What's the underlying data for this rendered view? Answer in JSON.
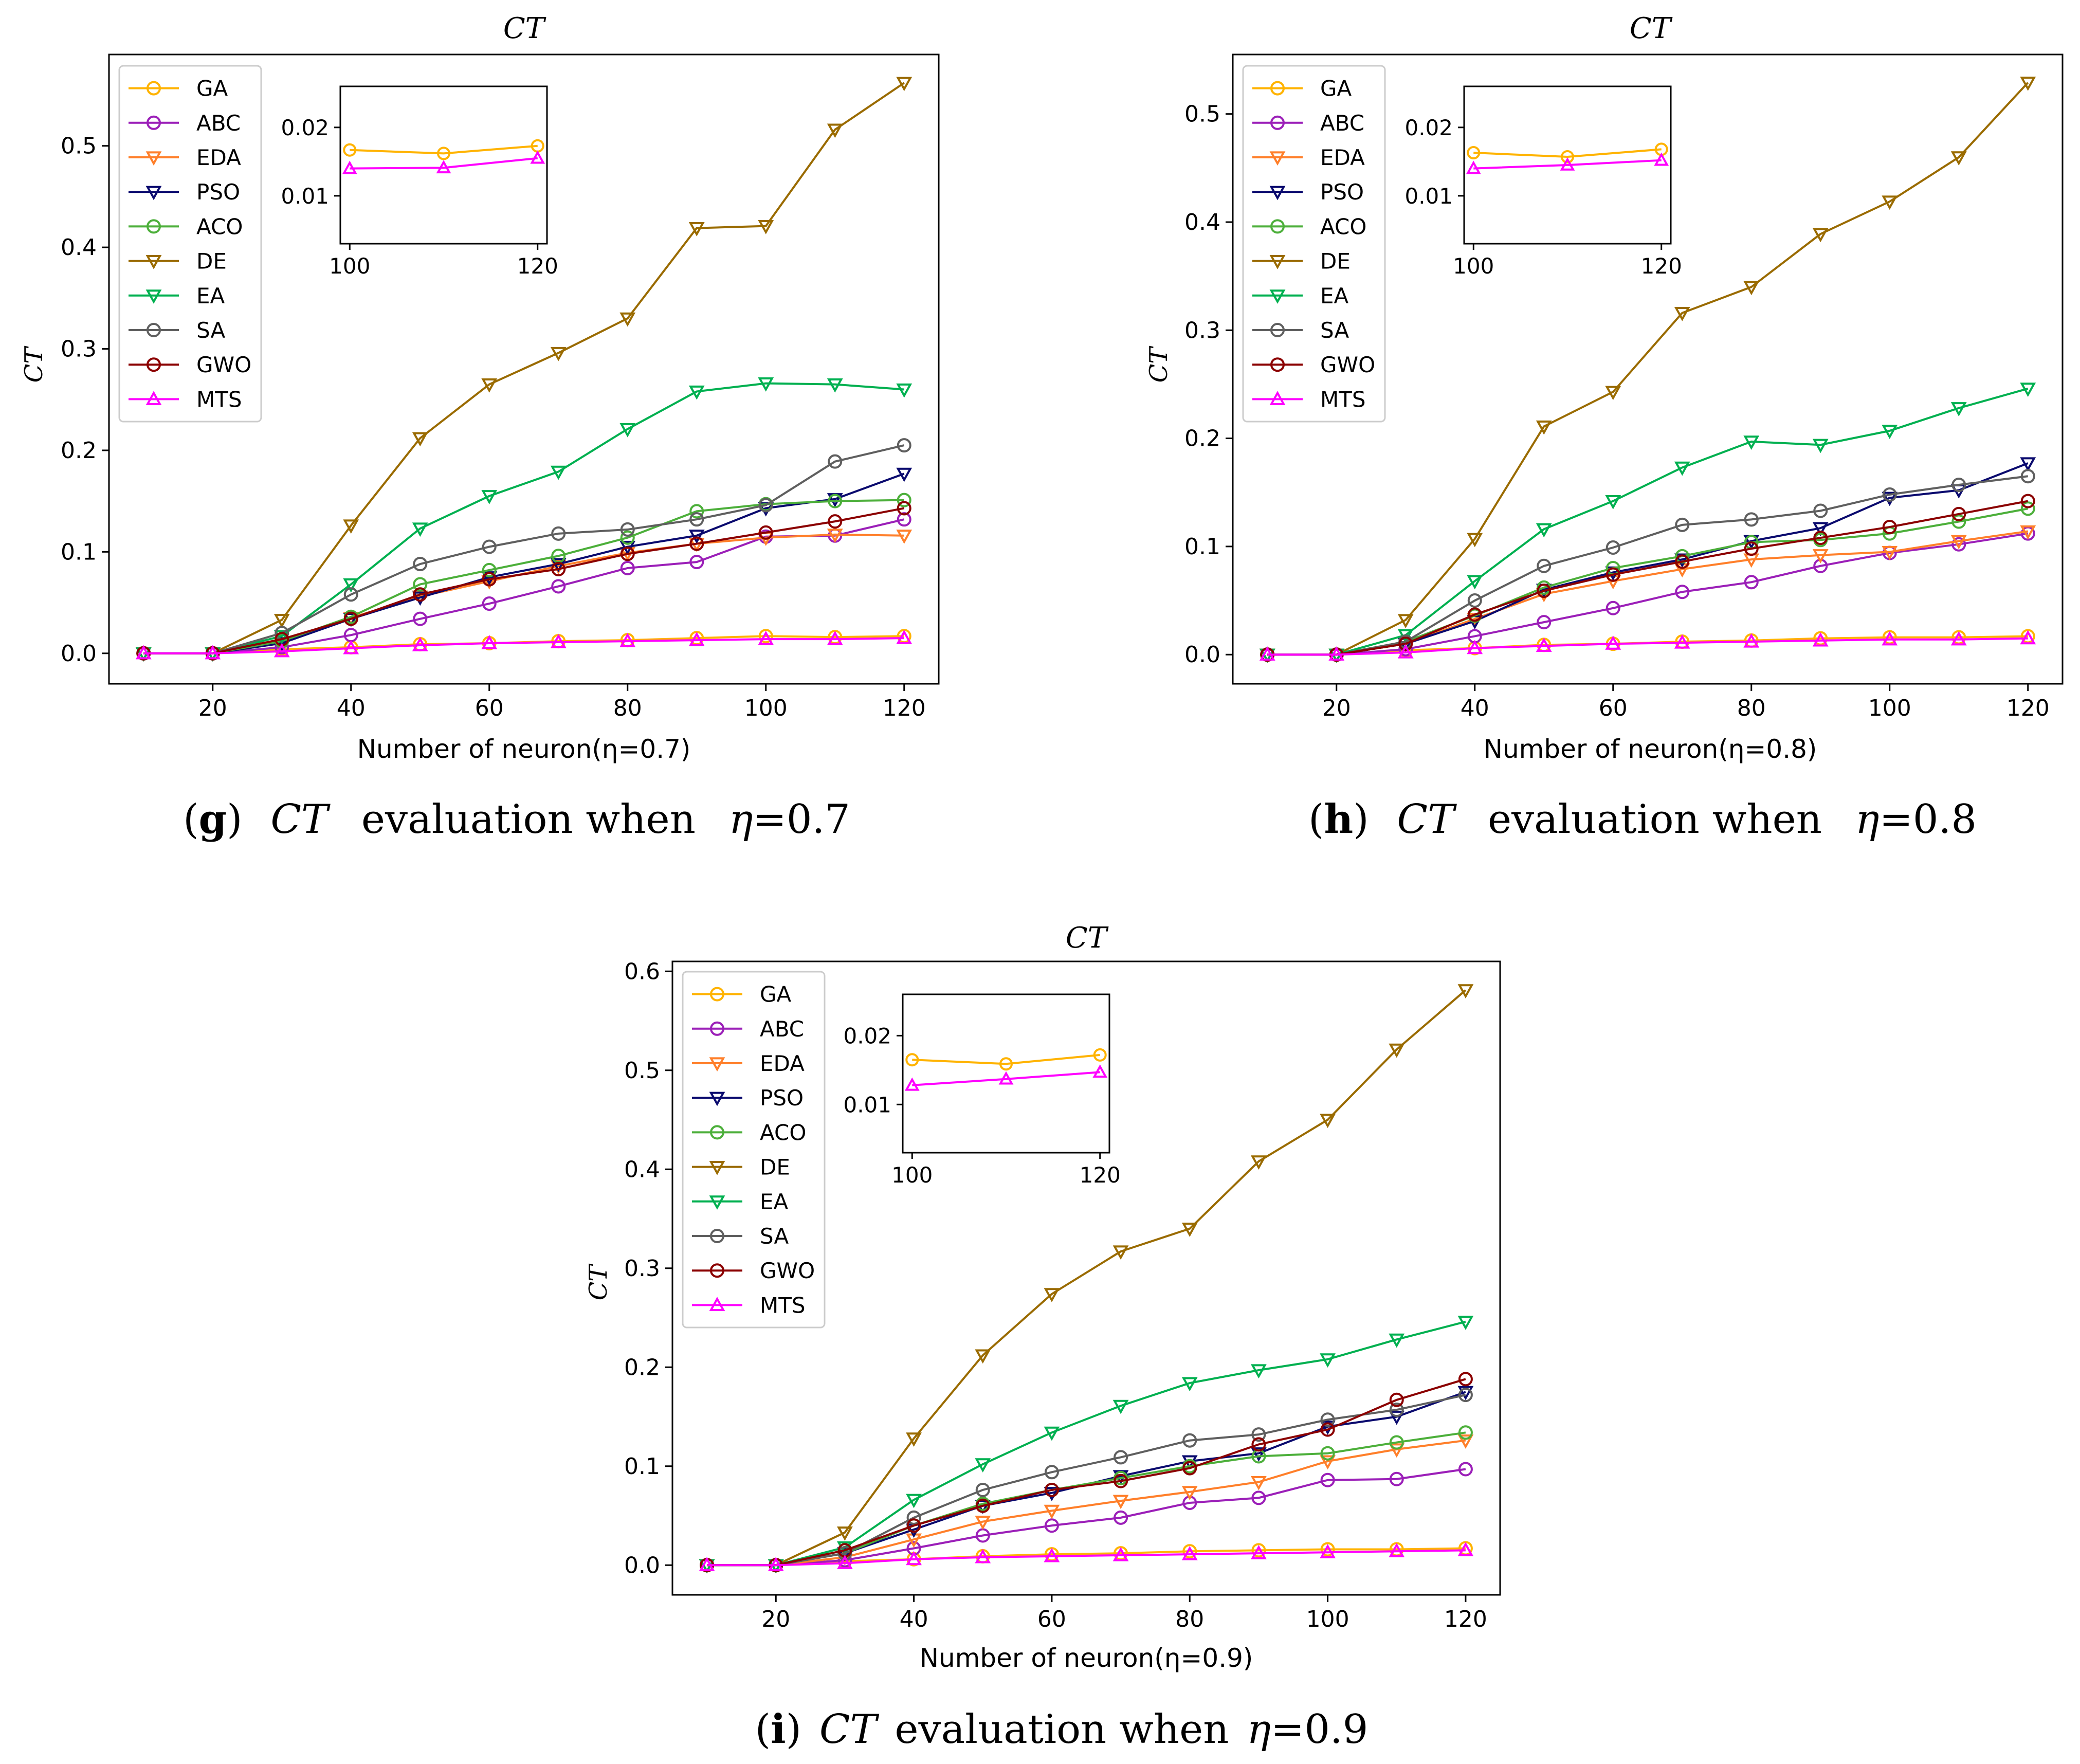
{
  "figure": {
    "captions": [
      {
        "letter": "g",
        "prefix": "(",
        "suffix": ")",
        "metric": "CT",
        "text": "evaluation when",
        "eta_symbol": "η",
        "eq": "=",
        "eta_value": "0.7"
      },
      {
        "letter": "h",
        "prefix": "(",
        "suffix": ")",
        "metric": "CT",
        "text": "evaluation when",
        "eta_symbol": "η",
        "eq": "=",
        "eta_value": "0.8"
      },
      {
        "letter": "i",
        "prefix": "(",
        "suffix": ")",
        "metric": "CT",
        "text": "evaluation when",
        "eta_symbol": "η",
        "eq": "=",
        "eta_value": "0.9"
      }
    ]
  },
  "chart_data": [
    {
      "type": "line",
      "title": "CT",
      "ylabel": "CT",
      "xlabel": "Number of neuron(η=0.7)",
      "xlim": [
        5,
        125
      ],
      "ylim": [
        -0.03,
        0.59
      ],
      "xticks": [
        20,
        40,
        60,
        80,
        100,
        120
      ],
      "xtick_labels": [
        "20",
        "40",
        "60",
        "80",
        "100",
        "120"
      ],
      "yticks": [
        0.0,
        0.1,
        0.2,
        0.3,
        0.4,
        0.5
      ],
      "ytick_labels": [
        "0.0",
        "0.1",
        "0.2",
        "0.3",
        "0.4",
        "0.5"
      ],
      "legend_position": "upper-left",
      "x": [
        10,
        20,
        30,
        40,
        50,
        60,
        70,
        80,
        90,
        100,
        110,
        120
      ],
      "series": [
        {
          "name": "GA",
          "color": "#FFB300",
          "marker": "circle",
          "values": [
            0,
            0,
            0.004,
            0.006,
            0.009,
            0.01,
            0.012,
            0.013,
            0.015,
            0.017,
            0.016,
            0.017
          ]
        },
        {
          "name": "ABC",
          "color": "#9B1FB8",
          "marker": "circle",
          "values": [
            0,
            0,
            0.006,
            0.018,
            0.034,
            0.049,
            0.066,
            0.084,
            0.09,
            0.115,
            0.116,
            0.132
          ]
        },
        {
          "name": "EDA",
          "color": "#FF7F2A",
          "marker": "triangle-down",
          "values": [
            0,
            0,
            0.01,
            0.035,
            0.056,
            0.071,
            0.086,
            0.099,
            0.108,
            0.114,
            0.117,
            0.116
          ]
        },
        {
          "name": "PSO",
          "color": "#0A0A6E",
          "marker": "triangle-down",
          "values": [
            0,
            0,
            0.01,
            0.034,
            0.055,
            0.075,
            0.088,
            0.105,
            0.116,
            0.143,
            0.152,
            0.177
          ]
        },
        {
          "name": "ACO",
          "color": "#4CAF3A",
          "marker": "circle",
          "values": [
            0,
            0,
            0.012,
            0.036,
            0.068,
            0.082,
            0.096,
            0.114,
            0.14,
            0.147,
            0.15,
            0.151
          ]
        },
        {
          "name": "DE",
          "color": "#9A6B00",
          "marker": "triangle-down",
          "values": [
            0,
            0,
            0.033,
            0.126,
            0.212,
            0.265,
            0.296,
            0.33,
            0.419,
            0.421,
            0.516,
            0.562
          ]
        },
        {
          "name": "EA",
          "color": "#00B050",
          "marker": "triangle-down",
          "values": [
            0,
            0,
            0.017,
            0.068,
            0.123,
            0.155,
            0.179,
            0.221,
            0.258,
            0.266,
            0.265,
            0.26
          ]
        },
        {
          "name": "SA",
          "color": "#5F5F5F",
          "marker": "circle",
          "values": [
            0,
            0,
            0.02,
            0.058,
            0.088,
            0.105,
            0.118,
            0.122,
            0.132,
            0.146,
            0.189,
            0.205
          ]
        },
        {
          "name": "GWO",
          "color": "#8B0000",
          "marker": "circle",
          "values": [
            0,
            0,
            0.014,
            0.034,
            0.058,
            0.073,
            0.083,
            0.098,
            0.108,
            0.119,
            0.13,
            0.143
          ]
        },
        {
          "name": "MTS",
          "color": "#FF00FF",
          "marker": "triangle-up",
          "values": [
            0,
            0,
            0.002,
            0.005,
            0.008,
            0.01,
            0.011,
            0.012,
            0.013,
            0.014,
            0.014,
            0.015
          ]
        }
      ],
      "inset": {
        "x": [
          100,
          110,
          120
        ],
        "xlim": [
          99,
          121
        ],
        "ylim": [
          0.003,
          0.026
        ],
        "xticks": [
          100,
          120
        ],
        "xtick_labels": [
          "100",
          "120"
        ],
        "yticks": [
          0.01,
          0.02
        ],
        "ytick_labels": [
          "0.01",
          "0.02"
        ],
        "series": [
          {
            "name": "GA",
            "color": "#FFB300",
            "marker": "circle",
            "values": [
              0.0167,
              0.0162,
              0.0173
            ]
          },
          {
            "name": "MTS",
            "color": "#FF00FF",
            "marker": "triangle-up",
            "values": [
              0.014,
              0.0141,
              0.0155
            ]
          }
        ]
      }
    },
    {
      "type": "line",
      "title": "CT",
      "ylabel": "CT",
      "xlabel": "Number of neuron(η=0.8)",
      "xlim": [
        5,
        125
      ],
      "ylim": [
        -0.027,
        0.555
      ],
      "xticks": [
        20,
        40,
        60,
        80,
        100,
        120
      ],
      "xtick_labels": [
        "20",
        "40",
        "60",
        "80",
        "100",
        "120"
      ],
      "yticks": [
        0.0,
        0.1,
        0.2,
        0.3,
        0.4,
        0.5
      ],
      "ytick_labels": [
        "0.0",
        "0.1",
        "0.2",
        "0.3",
        "0.4",
        "0.5"
      ],
      "legend_position": "upper-left",
      "x": [
        10,
        20,
        30,
        40,
        50,
        60,
        70,
        80,
        90,
        100,
        110,
        120
      ],
      "series": [
        {
          "name": "GA",
          "color": "#FFB300",
          "marker": "circle",
          "values": [
            0,
            0,
            0.004,
            0.006,
            0.009,
            0.01,
            0.012,
            0.013,
            0.015,
            0.016,
            0.016,
            0.017
          ]
        },
        {
          "name": "ABC",
          "color": "#9B1FB8",
          "marker": "circle",
          "values": [
            0,
            0,
            0.005,
            0.017,
            0.03,
            0.043,
            0.058,
            0.067,
            0.082,
            0.094,
            0.102,
            0.112
          ]
        },
        {
          "name": "EDA",
          "color": "#FF7F2A",
          "marker": "triangle-down",
          "values": [
            0,
            0,
            0.01,
            0.033,
            0.056,
            0.068,
            0.079,
            0.088,
            0.092,
            0.095,
            0.105,
            0.114
          ]
        },
        {
          "name": "PSO",
          "color": "#0A0A6E",
          "marker": "triangle-down",
          "values": [
            0,
            0,
            0.01,
            0.031,
            0.06,
            0.076,
            0.088,
            0.105,
            0.117,
            0.145,
            0.152,
            0.177
          ]
        },
        {
          "name": "ACO",
          "color": "#4CAF3A",
          "marker": "circle",
          "values": [
            0,
            0,
            0.012,
            0.036,
            0.062,
            0.08,
            0.091,
            0.104,
            0.106,
            0.112,
            0.123,
            0.135
          ]
        },
        {
          "name": "DE",
          "color": "#9A6B00",
          "marker": "triangle-down",
          "values": [
            0,
            0,
            0.032,
            0.107,
            0.211,
            0.243,
            0.316,
            0.34,
            0.389,
            0.419,
            0.46,
            0.529
          ]
        },
        {
          "name": "EA",
          "color": "#00B050",
          "marker": "triangle-down",
          "values": [
            0,
            0,
            0.018,
            0.068,
            0.116,
            0.142,
            0.173,
            0.197,
            0.194,
            0.207,
            0.228,
            0.246
          ]
        },
        {
          "name": "SA",
          "color": "#5F5F5F",
          "marker": "circle",
          "values": [
            0,
            0,
            0.012,
            0.05,
            0.082,
            0.099,
            0.12,
            0.125,
            0.133,
            0.148,
            0.157,
            0.165
          ]
        },
        {
          "name": "GWO",
          "color": "#8B0000",
          "marker": "circle",
          "values": [
            0,
            0,
            0.01,
            0.037,
            0.059,
            0.074,
            0.086,
            0.098,
            0.108,
            0.118,
            0.13,
            0.142
          ]
        },
        {
          "name": "MTS",
          "color": "#FF00FF",
          "marker": "triangle-up",
          "values": [
            0,
            0,
            0.002,
            0.006,
            0.008,
            0.01,
            0.011,
            0.012,
            0.013,
            0.014,
            0.014,
            0.015
          ]
        }
      ],
      "inset": {
        "x": [
          100,
          110,
          120
        ],
        "xlim": [
          99,
          121
        ],
        "ylim": [
          0.003,
          0.026
        ],
        "xticks": [
          100,
          120
        ],
        "xtick_labels": [
          "100",
          "120"
        ],
        "yticks": [
          0.01,
          0.02
        ],
        "ytick_labels": [
          "0.01",
          "0.02"
        ],
        "series": [
          {
            "name": "GA",
            "color": "#FFB300",
            "marker": "circle",
            "values": [
              0.0163,
              0.0157,
              0.0168
            ]
          },
          {
            "name": "MTS",
            "color": "#FF00FF",
            "marker": "triangle-up",
            "values": [
              0.014,
              0.0145,
              0.0152
            ]
          }
        ]
      }
    },
    {
      "type": "line",
      "title": "CT",
      "ylabel": "CT",
      "xlabel": "Number of neuron(η=0.9)",
      "xlim": [
        5,
        125
      ],
      "ylim": [
        -0.03,
        0.61
      ],
      "xticks": [
        20,
        40,
        60,
        80,
        100,
        120
      ],
      "xtick_labels": [
        "20",
        "40",
        "60",
        "80",
        "100",
        "120"
      ],
      "yticks": [
        0.0,
        0.1,
        0.2,
        0.3,
        0.4,
        0.5,
        0.6
      ],
      "ytick_labels": [
        "0.0",
        "0.1",
        "0.2",
        "0.3",
        "0.4",
        "0.5",
        "0.6"
      ],
      "legend_position": "upper-left",
      "x": [
        10,
        20,
        30,
        40,
        50,
        60,
        70,
        80,
        90,
        100,
        110,
        120
      ],
      "series": [
        {
          "name": "GA",
          "color": "#FFB300",
          "marker": "circle",
          "values": [
            0,
            0,
            0.004,
            0.006,
            0.009,
            0.011,
            0.012,
            0.014,
            0.015,
            0.016,
            0.016,
            0.017
          ]
        },
        {
          "name": "ABC",
          "color": "#9B1FB8",
          "marker": "circle",
          "values": [
            0,
            0,
            0.005,
            0.017,
            0.03,
            0.04,
            0.048,
            0.063,
            0.068,
            0.086,
            0.087,
            0.097
          ]
        },
        {
          "name": "EDA",
          "color": "#FF7F2A",
          "marker": "triangle-down",
          "values": [
            0,
            0,
            0.008,
            0.026,
            0.044,
            0.055,
            0.065,
            0.074,
            0.084,
            0.105,
            0.117,
            0.126
          ]
        },
        {
          "name": "PSO",
          "color": "#0A0A6E",
          "marker": "triangle-down",
          "values": [
            0,
            0,
            0.012,
            0.036,
            0.06,
            0.073,
            0.09,
            0.105,
            0.113,
            0.14,
            0.15,
            0.175
          ]
        },
        {
          "name": "ACO",
          "color": "#4CAF3A",
          "marker": "circle",
          "values": [
            0,
            0,
            0.012,
            0.04,
            0.062,
            0.076,
            0.088,
            0.1,
            0.11,
            0.113,
            0.124,
            0.134
          ]
        },
        {
          "name": "DE",
          "color": "#9A6B00",
          "marker": "triangle-down",
          "values": [
            0,
            0,
            0.033,
            0.128,
            0.212,
            0.274,
            0.317,
            0.34,
            0.408,
            0.45,
            0.521,
            0.581
          ]
        },
        {
          "name": "EA",
          "color": "#00B050",
          "marker": "triangle-down",
          "values": [
            0,
            0,
            0.018,
            0.066,
            0.102,
            0.134,
            0.161,
            0.184,
            0.197,
            0.208,
            0.228,
            0.246
          ]
        },
        {
          "name": "SA",
          "color": "#5F5F5F",
          "marker": "circle",
          "values": [
            0,
            0,
            0.012,
            0.048,
            0.076,
            0.094,
            0.109,
            0.126,
            0.132,
            0.147,
            0.157,
            0.172
          ]
        },
        {
          "name": "GWO",
          "color": "#8B0000",
          "marker": "circle",
          "values": [
            0,
            0,
            0.015,
            0.04,
            0.06,
            0.076,
            0.085,
            0.098,
            0.122,
            0.137,
            0.167,
            0.188
          ]
        },
        {
          "name": "MTS",
          "color": "#FF00FF",
          "marker": "triangle-up",
          "values": [
            0,
            0,
            0.002,
            0.006,
            0.008,
            0.009,
            0.01,
            0.011,
            0.012,
            0.013,
            0.014,
            0.015
          ]
        }
      ],
      "inset": {
        "x": [
          100,
          110,
          120
        ],
        "xlim": [
          99,
          121
        ],
        "ylim": [
          0.003,
          0.026
        ],
        "xticks": [
          100,
          120
        ],
        "xtick_labels": [
          "100",
          "120"
        ],
        "yticks": [
          0.01,
          0.02
        ],
        "ytick_labels": [
          "0.01",
          "0.02"
        ],
        "series": [
          {
            "name": "GA",
            "color": "#FFB300",
            "marker": "circle",
            "values": [
              0.0165,
              0.0159,
              0.0172
            ]
          },
          {
            "name": "MTS",
            "color": "#FF00FF",
            "marker": "triangle-up",
            "values": [
              0.0128,
              0.0137,
              0.0147
            ]
          }
        ]
      }
    }
  ]
}
